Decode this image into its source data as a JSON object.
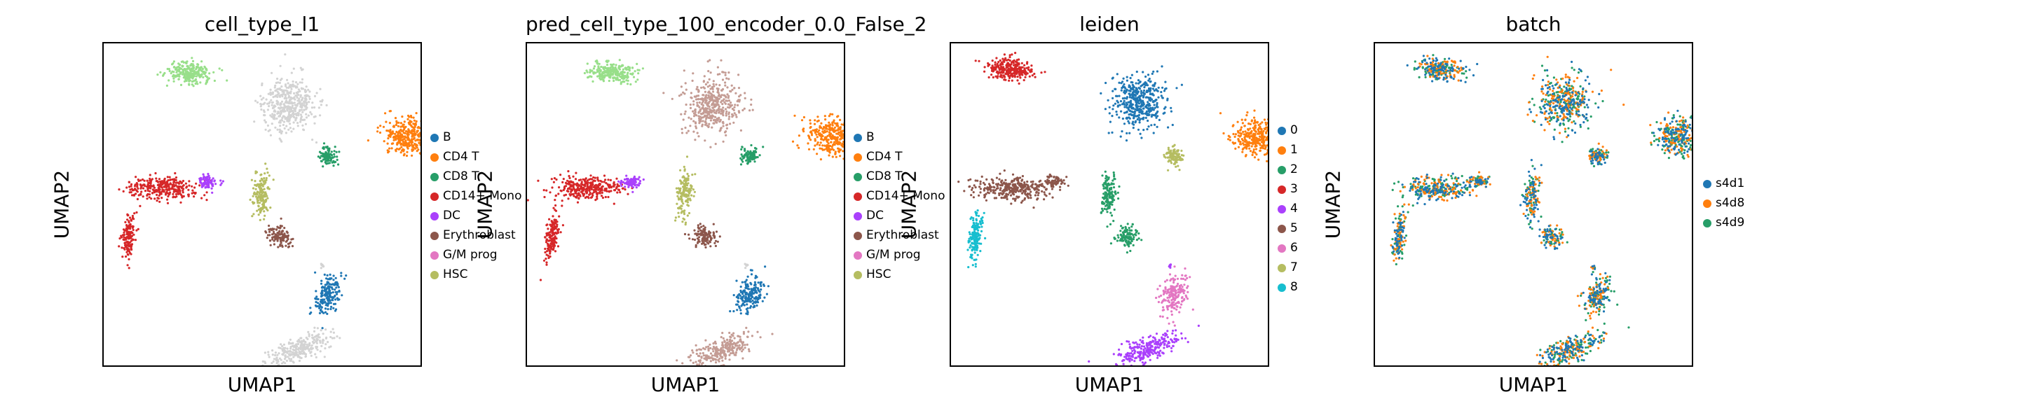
{
  "colors": {
    "c0": "#1f77b4",
    "c1": "#ff7f0e",
    "c2": "#279e68",
    "c3": "#d62728",
    "c4": "#aa40fc",
    "c5": "#8c564b",
    "c6": "#e377c2",
    "c7": "#b5bd61",
    "c8": "#17becf",
    "light_green": "#98df8a",
    "light_gray": "#d3d3d3",
    "light_blue": "#aec7e8",
    "tan": "#c49c94",
    "pink_light": "#f7b6d2"
  },
  "chart_data": [
    {
      "type": "scatter",
      "title": "cell_type_l1",
      "xlabel": "UMAP1",
      "ylabel": "UMAP2",
      "legend": [
        "B",
        "CD4 T",
        "CD8 T",
        "CD14+ Mono",
        "DC",
        "Erythroblast",
        "G/M prog",
        "HSC"
      ],
      "legend_colors": [
        "#1f77b4",
        "#ff7f0e",
        "#279e68",
        "#d62728",
        "#aa40fc",
        "#8c564b",
        "#e377c2",
        "#b5bd61"
      ],
      "legend_placement": "right",
      "grid": false
    },
    {
      "type": "scatter",
      "title": "pred_cell_type_100_encoder_0.0_False_2",
      "xlabel": "UMAP1",
      "ylabel": "UMAP2",
      "legend": [
        "B",
        "CD4 T",
        "CD8 T",
        "CD14+ Mono",
        "DC",
        "Erythroblast",
        "G/M prog",
        "HSC"
      ],
      "legend_colors": [
        "#1f77b4",
        "#ff7f0e",
        "#279e68",
        "#d62728",
        "#aa40fc",
        "#8c564b",
        "#e377c2",
        "#b5bd61"
      ],
      "legend_placement": "right",
      "grid": false
    },
    {
      "type": "scatter",
      "title": "leiden",
      "xlabel": "UMAP1",
      "ylabel": "UMAP2",
      "legend": [
        "0",
        "1",
        "2",
        "3",
        "4",
        "5",
        "6",
        "7",
        "8"
      ],
      "legend_colors": [
        "#1f77b4",
        "#ff7f0e",
        "#279e68",
        "#d62728",
        "#aa40fc",
        "#8c564b",
        "#e377c2",
        "#b5bd61",
        "#17becf"
      ],
      "legend_placement": "right",
      "grid": false
    },
    {
      "type": "scatter",
      "title": "batch",
      "xlabel": "UMAP1",
      "ylabel": "UMAP2",
      "legend": [
        "s4d1",
        "s4d8",
        "s4d9"
      ],
      "legend_colors": [
        "#1f77b4",
        "#ff7f0e",
        "#279e68"
      ],
      "legend_placement": "right",
      "grid": false
    }
  ]
}
